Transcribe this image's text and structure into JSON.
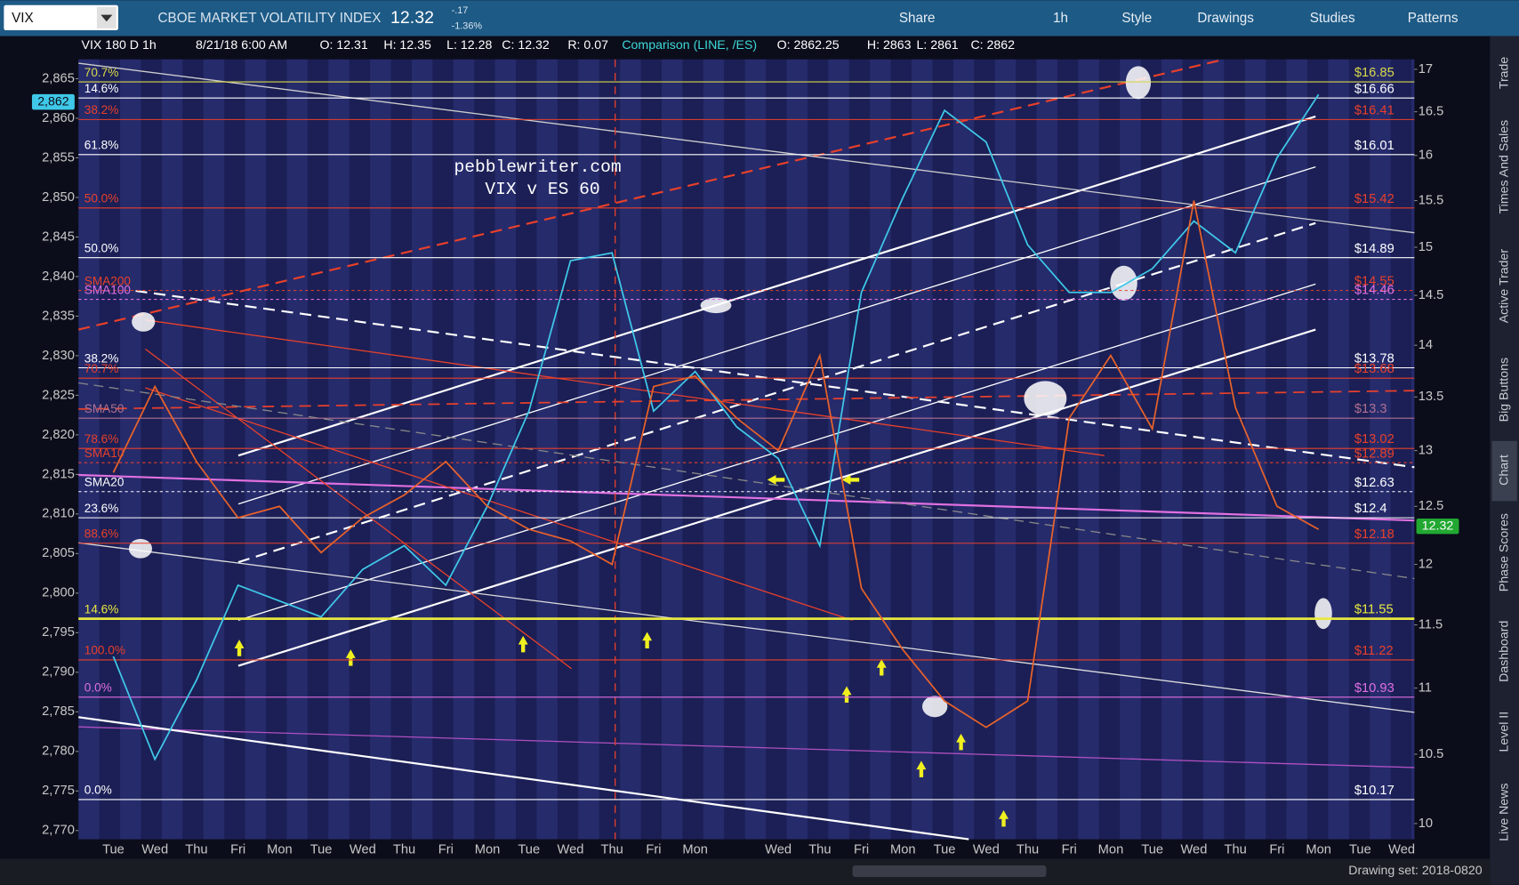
{
  "toolbar": {
    "symbol": "VIX",
    "description": "CBOE MARKET VOLATILITY INDEX",
    "last": "12.32",
    "change": "-.17",
    "change_pct": "-1.36%",
    "buttons": [
      "Share",
      "1h",
      "Style",
      "Drawings",
      "Studies",
      "Patterns"
    ]
  },
  "header": {
    "study": [
      "VIX 180 D 1h",
      "8/21/18 6:00 AM",
      "O: 12.31",
      "H: 12.35",
      "L: 12.28",
      "C: 12.32",
      "R: 0.07"
    ],
    "comparison": "Comparison (LINE, /ES)",
    "comparison_values": [
      "O: 2862.25",
      "H: 2863",
      "L: 2861",
      "C: 2862"
    ]
  },
  "chart_data": {
    "type": "line",
    "annotations": [
      "pebblewriter.com",
      "VIX v ES 60"
    ],
    "categories": [
      "Tue",
      "Wed",
      "Thu",
      "Fri",
      "Mon",
      "Tue",
      "Wed",
      "Thu",
      "Fri",
      "Mon",
      "Tue",
      "Wed",
      "Thu",
      "Fri",
      "Mon",
      null,
      "Wed",
      "Thu",
      "Fri",
      "Mon",
      "Tue",
      "Wed",
      "Thu",
      "Fri",
      "Mon",
      "Tue",
      "Wed",
      "Thu",
      "Fri",
      "Mon",
      "Tue",
      "Wed"
    ],
    "series": [
      {
        "name": "/ES",
        "color": "#3fc8e8",
        "axis": "y",
        "values": [
          2792,
          2779,
          2789,
          2801,
          2799,
          2797,
          2803,
          2806,
          2801,
          2811,
          2823,
          2842,
          2843,
          2823,
          2828,
          2821,
          2817,
          2806,
          2838,
          2850,
          2861,
          2857,
          2844,
          2838,
          2838,
          2841,
          2847,
          2843,
          2855,
          2863,
          null,
          null
        ]
      },
      {
        "name": "VIX",
        "color": "#e8622a",
        "axis": "y2",
        "values": [
          12.8,
          13.6,
          12.9,
          12.4,
          12.5,
          12.1,
          12.4,
          12.6,
          12.9,
          12.5,
          12.3,
          12.2,
          12.0,
          13.6,
          13.7,
          13.3,
          13.0,
          13.9,
          11.8,
          11.3,
          10.9,
          10.7,
          10.9,
          13.3,
          13.9,
          13.2,
          15.5,
          13.4,
          12.5,
          12.3,
          null,
          null
        ]
      }
    ],
    "ylim": [
      2768.9,
      2867.45
    ],
    "yticks": [
      {
        "value": 2770,
        "label": "2,770"
      },
      {
        "value": 2775,
        "label": "2,775"
      },
      {
        "value": 2780,
        "label": "2,780"
      },
      {
        "value": 2785,
        "label": "2,785"
      },
      {
        "value": 2790,
        "label": "2,790"
      },
      {
        "value": 2795,
        "label": "2,795"
      },
      {
        "value": 2800,
        "label": "2,800"
      },
      {
        "value": 2805,
        "label": "2,805"
      },
      {
        "value": 2810,
        "label": "2,810"
      },
      {
        "value": 2815,
        "label": "2,815"
      },
      {
        "value": 2820,
        "label": "2,820"
      },
      {
        "value": 2825,
        "label": "2,825"
      },
      {
        "value": 2830,
        "label": "2,830"
      },
      {
        "value": 2835,
        "label": "2,835"
      },
      {
        "value": 2840,
        "label": "2,840"
      },
      {
        "value": 2845,
        "label": "2,845"
      },
      {
        "value": 2850,
        "label": "2,850"
      },
      {
        "value": 2855,
        "label": "2,855"
      },
      {
        "value": 2860,
        "label": "2,860"
      },
      {
        "value": 2865,
        "label": "2,865"
      }
    ],
    "y2lim": [
      9.89,
      17.12
    ],
    "y2ticks": [
      10,
      10.5,
      11,
      11.5,
      12,
      12.5,
      13,
      13.5,
      14,
      14.5,
      15,
      15.5,
      16,
      16.5,
      17
    ],
    "y2_log": true,
    "levels": [
      {
        "value": 16.85,
        "label": "$16.85",
        "left": "70.7%",
        "color": "#d8d84a"
      },
      {
        "value": 16.66,
        "label": "$16.66",
        "left": "14.6%",
        "color": "#ffffff"
      },
      {
        "value": 16.41,
        "label": "$16.41",
        "left": "38.2%",
        "color": "#e8402a"
      },
      {
        "value": 16.01,
        "label": "$16.01",
        "left": "61.8%",
        "color": "#ffffff"
      },
      {
        "value": 15.42,
        "label": "$15.42",
        "left": "50.0%",
        "color": "#e8402a"
      },
      {
        "value": 14.89,
        "label": "$14.89",
        "left": "50.0%",
        "color": "#ffffff"
      },
      {
        "value": 14.55,
        "label": "$14.55",
        "left": "SMA200",
        "color": "#e8402a",
        "dashed": true
      },
      {
        "value": 14.46,
        "label": "$14.46",
        "left": "SMA100",
        "color": "#e070e0",
        "dashed": true
      },
      {
        "value": 13.78,
        "label": "$13.78",
        "left": "38.2%",
        "color": "#ffffff"
      },
      {
        "value": 13.68,
        "label": "$13.68",
        "left": "70.7%",
        "color": "#e8402a"
      },
      {
        "value": 13.3,
        "label": "$13.3",
        "left": "SMA50",
        "color": "#b07090"
      },
      {
        "value": 13.02,
        "label": "$13.02",
        "left": "78.6%",
        "color": "#e8402a"
      },
      {
        "value": 12.89,
        "label": "$12.89",
        "left": "SMA10",
        "color": "#e8402a",
        "dashed": true
      },
      {
        "value": 12.63,
        "label": "$12.63",
        "left": "SMA20",
        "color": "#ffffff",
        "dashed": true
      },
      {
        "value": 12.4,
        "label": "$12.4",
        "left": "23.6%",
        "color": "#ffffff"
      },
      {
        "value": 12.18,
        "label": "$12.18",
        "left": "88.6%",
        "color": "#e8402a"
      },
      {
        "value": 11.55,
        "label": "$11.55",
        "left": "14.6%",
        "color": "#e8e840"
      },
      {
        "value": 11.22,
        "label": "$11.22",
        "left": "100.0%",
        "color": "#e8402a"
      },
      {
        "value": 10.93,
        "label": "$10.93",
        "left": "0.0%",
        "color": "#e070e0"
      },
      {
        "value": 10.17,
        "label": "$10.17",
        "left": "0.0%",
        "color": "#ffffff"
      }
    ]
  },
  "price_tags": {
    "es": "2,862",
    "vix": "12.32"
  },
  "footer": {
    "drawing_set": "Drawing set: 2018-0820"
  },
  "sidebar": [
    "Trade",
    "Times And Sales",
    "Active Trader",
    "Big Buttons",
    "Chart",
    "Phase Scores",
    "Dashboard",
    "Level II",
    "Live News"
  ]
}
